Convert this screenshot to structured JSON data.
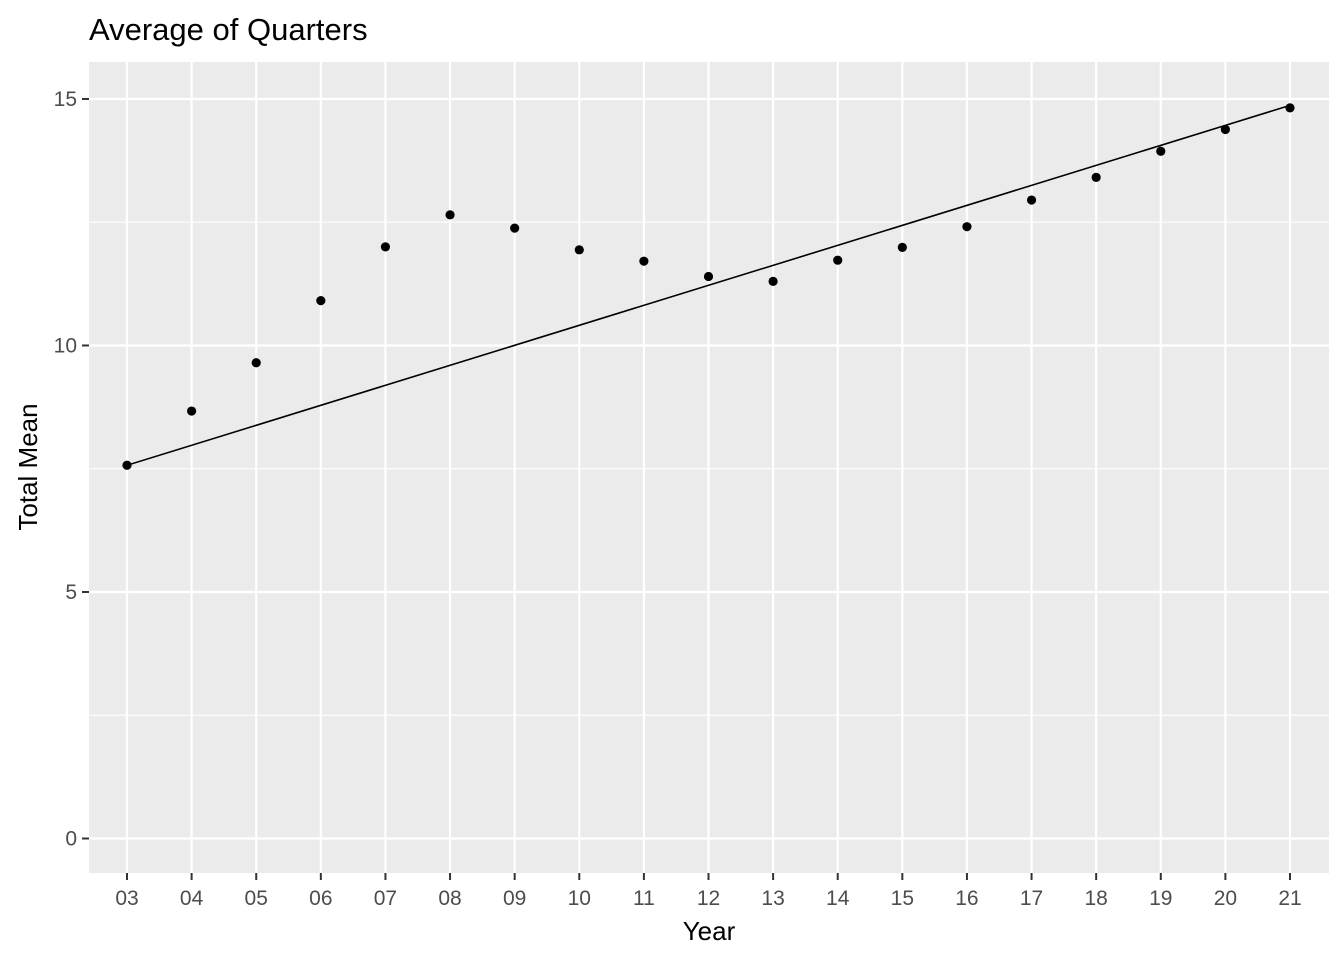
{
  "chart_data": {
    "type": "scatter",
    "title": "Average of Quarters",
    "xlabel": "Year",
    "ylabel": "Total Mean",
    "categories": [
      "03",
      "04",
      "05",
      "06",
      "07",
      "08",
      "09",
      "10",
      "11",
      "12",
      "13",
      "14",
      "15",
      "16",
      "17",
      "18",
      "19",
      "20",
      "21"
    ],
    "values": [
      7.57,
      8.67,
      9.65,
      10.91,
      12.0,
      12.65,
      12.38,
      11.94,
      11.71,
      11.4,
      11.3,
      11.73,
      11.99,
      12.41,
      12.95,
      13.41,
      13.94,
      14.38,
      14.82
    ],
    "trendline": {
      "start": 7.57,
      "end": 14.87
    },
    "ylim": [
      -0.7,
      15.75
    ],
    "y_ticks": [
      0,
      5,
      10,
      15
    ],
    "grid": true,
    "background": "#ebebeb",
    "point_color": "#000000",
    "line_color": "#000000"
  }
}
